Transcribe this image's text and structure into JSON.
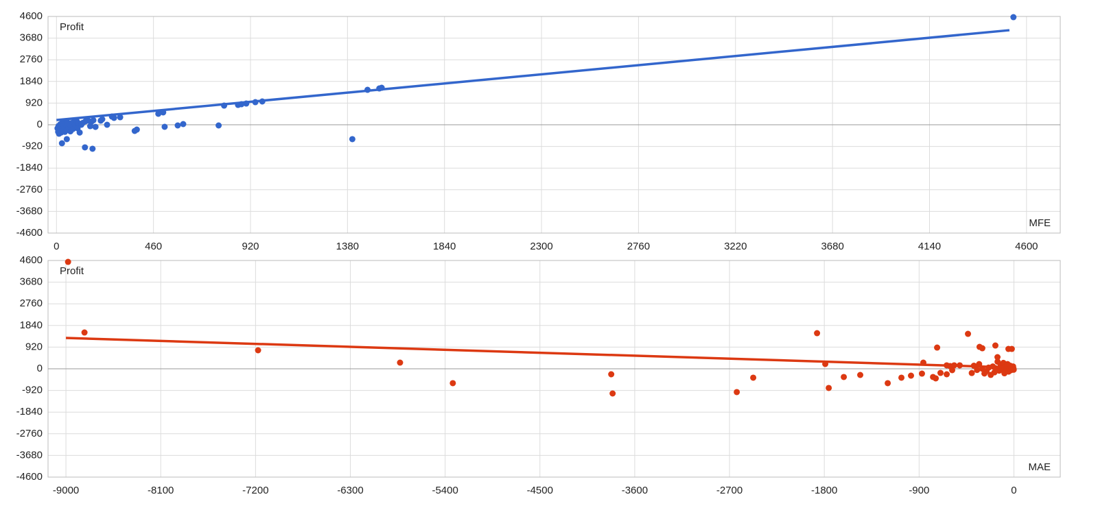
{
  "chart_data": [
    {
      "type": "scatter",
      "x_label": "MFE",
      "y_label": "Profit",
      "color": "#3366cc",
      "grid": true,
      "xlim": [
        -40,
        4760
      ],
      "ylim": [
        -4600,
        4600
      ],
      "xticks": [
        0,
        460,
        920,
        1380,
        1840,
        2300,
        2760,
        3220,
        3680,
        4140,
        4600
      ],
      "yticks": [
        -4600,
        -3680,
        -2760,
        -1840,
        -920,
        0,
        920,
        1840,
        2760,
        3680,
        4600
      ],
      "x": [
        4538,
        1475,
        1531,
        1542,
        1403,
        795,
        861,
        877,
        900,
        943,
        976,
        769,
        483,
        506,
        513,
        575,
        601,
        371,
        381,
        135,
        171,
        26,
        49,
        217,
        263,
        302,
        273,
        240,
        210,
        5,
        8,
        10,
        12,
        15,
        18,
        20,
        22,
        25,
        28,
        30,
        33,
        36,
        38,
        40,
        44,
        48,
        52,
        55,
        58,
        62,
        66,
        70,
        74,
        78,
        82,
        88,
        92,
        96,
        100,
        105,
        110,
        118,
        125,
        138,
        150,
        160,
        165,
        175,
        185
      ],
      "values": [
        4570,
        1484,
        1542,
        1571,
        -611,
        815,
        844,
        873,
        902,
        960,
        990,
        -29,
        466,
        524,
        -87,
        -29,
        29,
        -262,
        -204,
        -960,
        -1019,
        -786,
        -611,
        233,
        349,
        320,
        291,
        0,
        175,
        -150,
        -300,
        -50,
        -380,
        -220,
        20,
        -100,
        -330,
        60,
        -180,
        -260,
        -20,
        80,
        -140,
        -300,
        40,
        -60,
        100,
        -200,
        -120,
        20,
        -280,
        70,
        -30,
        -180,
        120,
        0,
        -90,
        150,
        -150,
        60,
        -330,
        0,
        80,
        150,
        180,
        -60,
        120,
        190,
        -90
      ],
      "trendline": {
        "x": [
          0,
          4519
        ],
        "y": [
          200,
          4016
        ]
      }
    },
    {
      "type": "scatter",
      "x_label": "MAE",
      "y_label": "Profit",
      "color": "#dc3912",
      "grid": true,
      "xlim": [
        -9170,
        440
      ],
      "ylim": [
        -4600,
        4600
      ],
      "xticks": [
        -9000,
        -8100,
        -7200,
        -6300,
        -5400,
        -4500,
        -3600,
        -2700,
        -1800,
        -900,
        0
      ],
      "yticks": [
        -4600,
        -3680,
        -2760,
        -1840,
        -920,
        0,
        920,
        1840,
        2760,
        3680,
        4600
      ],
      "x": [
        -8980,
        -8824,
        -7176,
        -5828,
        -5327,
        -3823,
        -3810,
        -2631,
        -2475,
        -1869,
        -1791,
        -1758,
        -1615,
        -1459,
        -1198,
        -1068,
        -977,
        -873,
        -860,
        -729,
        -768,
        -742,
        -436,
        -326,
        -300,
        -176,
        -156,
        -52,
        -20,
        -697,
        -638,
        -586,
        -567,
        -514,
        -638,
        -606,
        -280,
        -260,
        -240,
        -220,
        -200,
        -185,
        -170,
        -155,
        -140,
        -125,
        -110,
        -100,
        -90,
        -80,
        -70,
        -60,
        -50,
        -42,
        -35,
        -28,
        -20,
        -14,
        -8,
        -4,
        -2,
        -300,
        -350,
        -380,
        -400,
        -330
      ],
      "values": [
        4540,
        1542,
        786,
        262,
        -611,
        -233,
        -1048,
        -989,
        -378,
        1513,
        204,
        -815,
        -349,
        -262,
        -611,
        -378,
        -291,
        -204,
        262,
        902,
        -349,
        -407,
        1484,
        931,
        873,
        989,
        495,
        844,
        844,
        -175,
        -233,
        -58,
        146,
        146,
        146,
        116,
        -200,
        -100,
        50,
        -260,
        100,
        -150,
        20,
        300,
        -80,
        160,
        -40,
        250,
        -190,
        80,
        -20,
        200,
        -120,
        40,
        130,
        -60,
        60,
        -10,
        100,
        10,
        -40,
        0,
        -50,
        130,
        -180,
        200
      ],
      "trendline": {
        "x": [
          -9000,
          -50
        ],
        "y": [
          1310,
          60
        ]
      }
    }
  ]
}
